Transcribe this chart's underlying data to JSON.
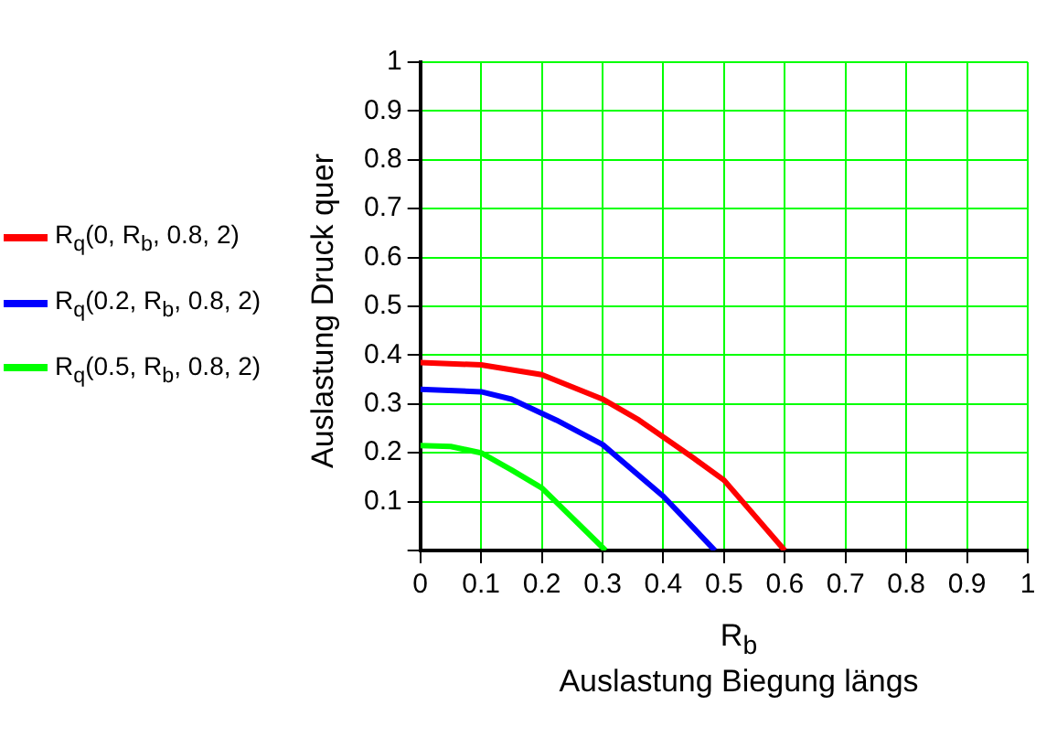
{
  "chart_data": {
    "type": "line",
    "xlabel": "R$_{b}$",
    "ylabel": "Auslastung Druck quer",
    "annotations": [
      "Auslastung Biegung längs"
    ],
    "xlim": [
      0,
      1
    ],
    "xticks": [
      0,
      0.1,
      0.2,
      0.3,
      0.4,
      0.5,
      0.6,
      0.7,
      0.8,
      0.9,
      1
    ],
    "ylim": [
      0,
      1
    ],
    "yticks": [
      {
        "value": 0,
        "label": null
      },
      0.1,
      0.2,
      0.3,
      0.4,
      0.5,
      0.6,
      0.7,
      0.8,
      0.9,
      1
    ],
    "grid": true,
    "legend": "left",
    "marker": "none",
    "line_style": "solid",
    "series": [
      {
        "name": "R$_{q}$(0, R$_{b}$, 0.8, 2)",
        "color": "#ff0000",
        "x": [
          0,
          0.1,
          0.2,
          0.3,
          0.36,
          0.45,
          0.5,
          0.6
        ],
        "values": [
          0.385,
          0.38,
          0.36,
          0.31,
          0.267,
          0.189,
          0.144,
          0
        ]
      },
      {
        "name": "R$_{q}$(0.2, R$_{b}$, 0.8, 2)",
        "color": "#0000ff",
        "x": [
          0,
          0.1,
          0.15,
          0.224,
          0.3,
          0.4,
          0.485
        ],
        "values": [
          0.33,
          0.325,
          0.31,
          0.267,
          0.217,
          0.111,
          0
        ]
      },
      {
        "name": "R$_{q}$(0.5, R$_{b}$, 0.8, 2)",
        "color": "#00ff00",
        "x": [
          0,
          0.05,
          0.1,
          0.15,
          0.2,
          0.25,
          0.305
        ],
        "values": [
          0.215,
          0.213,
          0.2,
          0.165,
          0.128,
          0.067,
          0
        ]
      }
    ]
  }
}
